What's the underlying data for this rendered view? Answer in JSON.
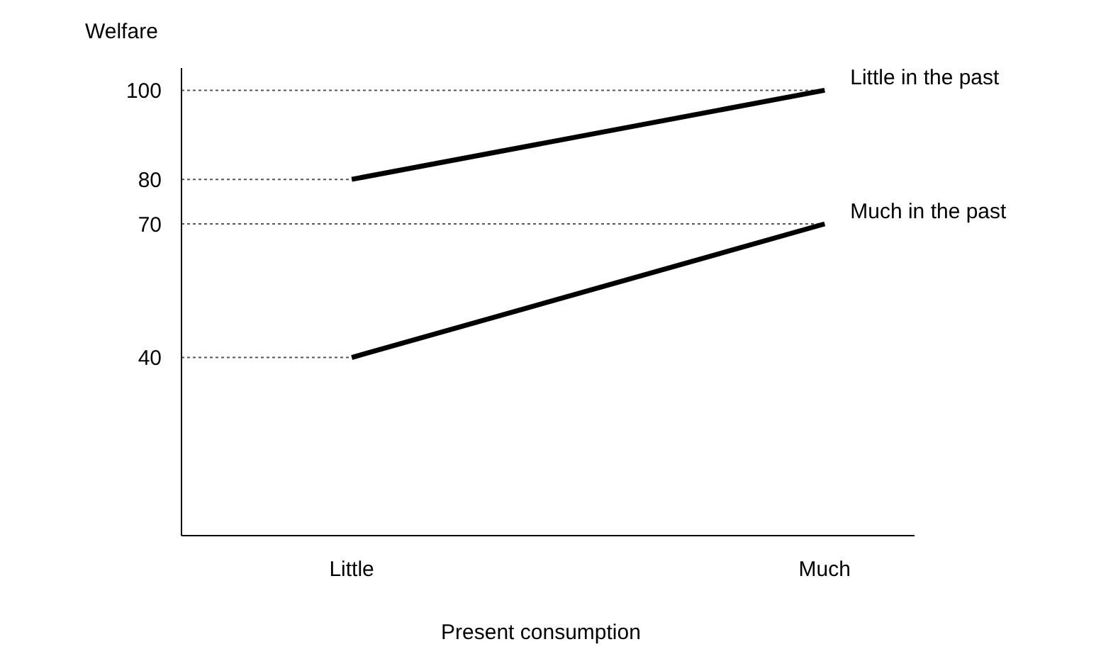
{
  "chart_data": {
    "type": "line",
    "xlabel": "Present consumption",
    "ylabel": "Welfare",
    "categories": [
      "Little",
      "Much"
    ],
    "series": [
      {
        "name": "Little in the past",
        "color": "#000000",
        "values": [
          80,
          100
        ]
      },
      {
        "name": "Much in the past",
        "color": "#000000",
        "values": [
          40,
          70
        ]
      }
    ],
    "ylim": [
      0,
      105
    ],
    "yticks": [
      40,
      70,
      80,
      100
    ],
    "grid": false,
    "legend": false,
    "marker": "none",
    "line_style": "solid",
    "ref_lines": [
      {
        "axis": "y",
        "value": 100,
        "line_style": "dotted"
      },
      {
        "axis": "y",
        "value": 80,
        "line_style": "dotted"
      },
      {
        "axis": "y",
        "value": 70,
        "line_style": "dotted"
      },
      {
        "axis": "y",
        "value": 40,
        "line_style": "dotted"
      }
    ]
  }
}
